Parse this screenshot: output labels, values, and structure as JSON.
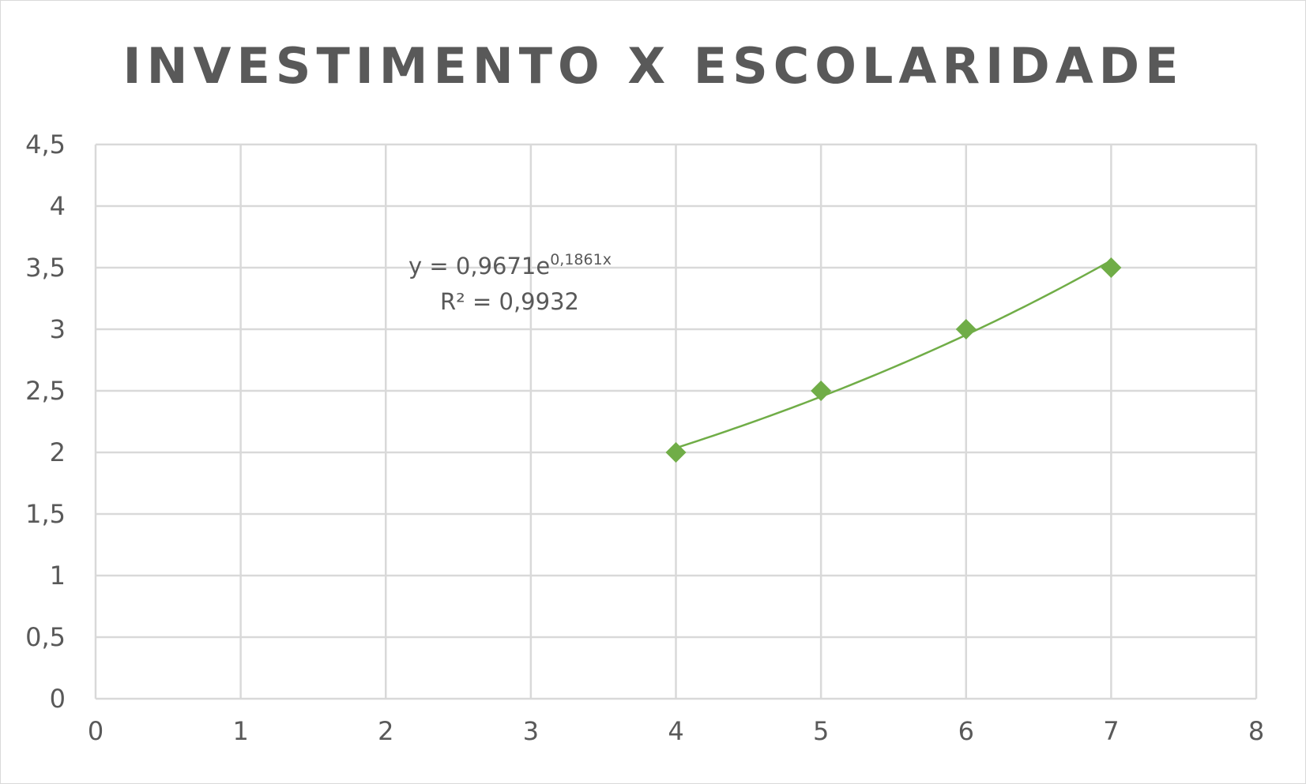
{
  "chart_data": {
    "type": "scatter",
    "title": "INVESTIMENTO X ESCOLARIDADE",
    "xlabel": "",
    "ylabel": "",
    "xlim": [
      0,
      8
    ],
    "ylim": [
      0,
      4.5
    ],
    "x_ticks": [
      "0",
      "1",
      "2",
      "3",
      "4",
      "5",
      "6",
      "7",
      "8"
    ],
    "y_ticks": [
      "0",
      "0,5",
      "1",
      "1,5",
      "2",
      "2,5",
      "3",
      "3,5",
      "4",
      "4,5"
    ],
    "grid": true,
    "series": [
      {
        "name": "Investimento x Escolaridade",
        "x": [
          4,
          5,
          6,
          7
        ],
        "y": [
          2,
          2.5,
          3,
          3.5
        ],
        "marker": "diamond"
      }
    ],
    "trendline": {
      "type": "exponential",
      "a": 0.9671,
      "b": 0.1861,
      "equation_prefix": "y = 0,9671e",
      "equation_exponent": "0,1861x",
      "r_squared_label": "R² = 0,9932"
    },
    "colors": {
      "series": "#70ad47",
      "grid": "#d9d9d9",
      "text": "#595959"
    }
  }
}
